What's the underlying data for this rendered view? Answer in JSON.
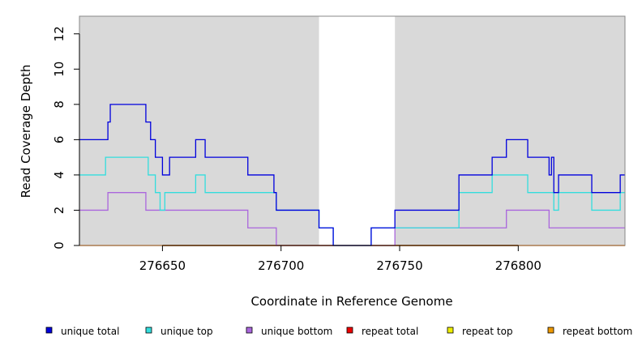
{
  "chart_data": {
    "type": "line",
    "xlabel": "Coordinate in Reference Genome",
    "ylabel": "Read Coverage Depth",
    "xlim": [
      276615,
      276845
    ],
    "ylim": [
      0,
      13
    ],
    "x_ticks": [
      276650,
      276700,
      276750,
      276800
    ],
    "y_ticks": [
      0,
      2,
      4,
      6,
      8,
      10,
      12
    ],
    "shaded_regions": [
      [
        276615,
        276716
      ],
      [
        276748,
        276845
      ]
    ],
    "colors": {
      "shade": "#d9d9d9",
      "frame": "#888888"
    },
    "legend_position": "bottom",
    "series": [
      {
        "name": "unique total",
        "color": "#0000dd",
        "steps": [
          [
            276615,
            6
          ],
          [
            276627,
            7
          ],
          [
            276628,
            8
          ],
          [
            276643,
            7
          ],
          [
            276645,
            6
          ],
          [
            276647,
            5
          ],
          [
            276650,
            4
          ],
          [
            276653,
            5
          ],
          [
            276664,
            6
          ],
          [
            276668,
            5
          ],
          [
            276686,
            4
          ],
          [
            276697,
            3
          ],
          [
            276698,
            2
          ],
          [
            276716,
            1
          ],
          [
            276722,
            0
          ],
          [
            276738,
            1
          ],
          [
            276748,
            2
          ],
          [
            276775,
            4
          ],
          [
            276789,
            5
          ],
          [
            276795,
            6
          ],
          [
            276804,
            5
          ],
          [
            276813,
            4
          ],
          [
            276814,
            5
          ],
          [
            276815,
            3
          ],
          [
            276817,
            4
          ],
          [
            276831,
            3
          ],
          [
            276843,
            4
          ],
          [
            276845,
            4
          ]
        ]
      },
      {
        "name": "unique top",
        "color": "#33dddd",
        "steps": [
          [
            276615,
            4
          ],
          [
            276626,
            5
          ],
          [
            276644,
            4
          ],
          [
            276647,
            3
          ],
          [
            276649,
            2
          ],
          [
            276651,
            3
          ],
          [
            276664,
            4
          ],
          [
            276668,
            3
          ],
          [
            276698,
            2
          ],
          [
            276716,
            1
          ],
          [
            276722,
            0
          ],
          [
            276738,
            1
          ],
          [
            276775,
            3
          ],
          [
            276789,
            4
          ],
          [
            276804,
            3
          ],
          [
            276815,
            2
          ],
          [
            276817,
            3
          ],
          [
            276831,
            2
          ],
          [
            276843,
            3
          ],
          [
            276845,
            3
          ]
        ]
      },
      {
        "name": "unique bottom",
        "color": "#aa66dd",
        "steps": [
          [
            276615,
            2
          ],
          [
            276627,
            3
          ],
          [
            276643,
            2
          ],
          [
            276686,
            1
          ],
          [
            276698,
            0
          ],
          [
            276748,
            1
          ],
          [
            276795,
            2
          ],
          [
            276813,
            1
          ],
          [
            276845,
            1
          ]
        ]
      },
      {
        "name": "repeat total",
        "color": "#ee0000",
        "steps": [
          [
            276615,
            0
          ],
          [
            276845,
            0
          ]
        ]
      },
      {
        "name": "repeat top",
        "color": "#eeee00",
        "steps": [
          [
            276615,
            0
          ],
          [
            276845,
            0
          ]
        ]
      },
      {
        "name": "repeat bottom",
        "color": "#ee9900",
        "steps": [
          [
            276615,
            0
          ],
          [
            276845,
            0
          ]
        ]
      }
    ]
  }
}
